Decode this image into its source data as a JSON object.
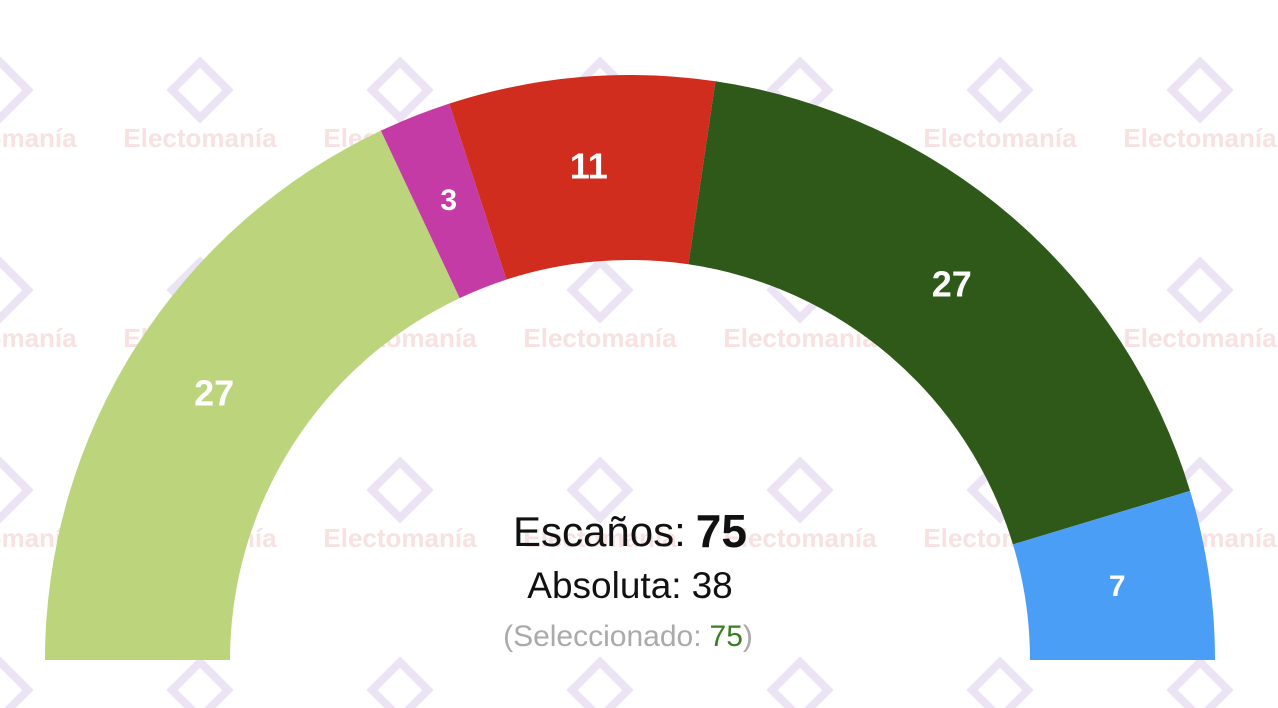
{
  "chart_data": {
    "type": "semicircle",
    "values": [
      27,
      3,
      11,
      27,
      7
    ],
    "colors": [
      "#bcd47c",
      "#c43ba6",
      "#d12d1f",
      "#2e5919",
      "#4b9ef5"
    ],
    "total_label": "Escaños:",
    "total": 75,
    "majority_label": "Absoluta:",
    "majority": 38,
    "selected_prefix": "(Seleccionado:",
    "selected": 75,
    "selected_suffix": ")",
    "watermark": "Electomanía"
  }
}
